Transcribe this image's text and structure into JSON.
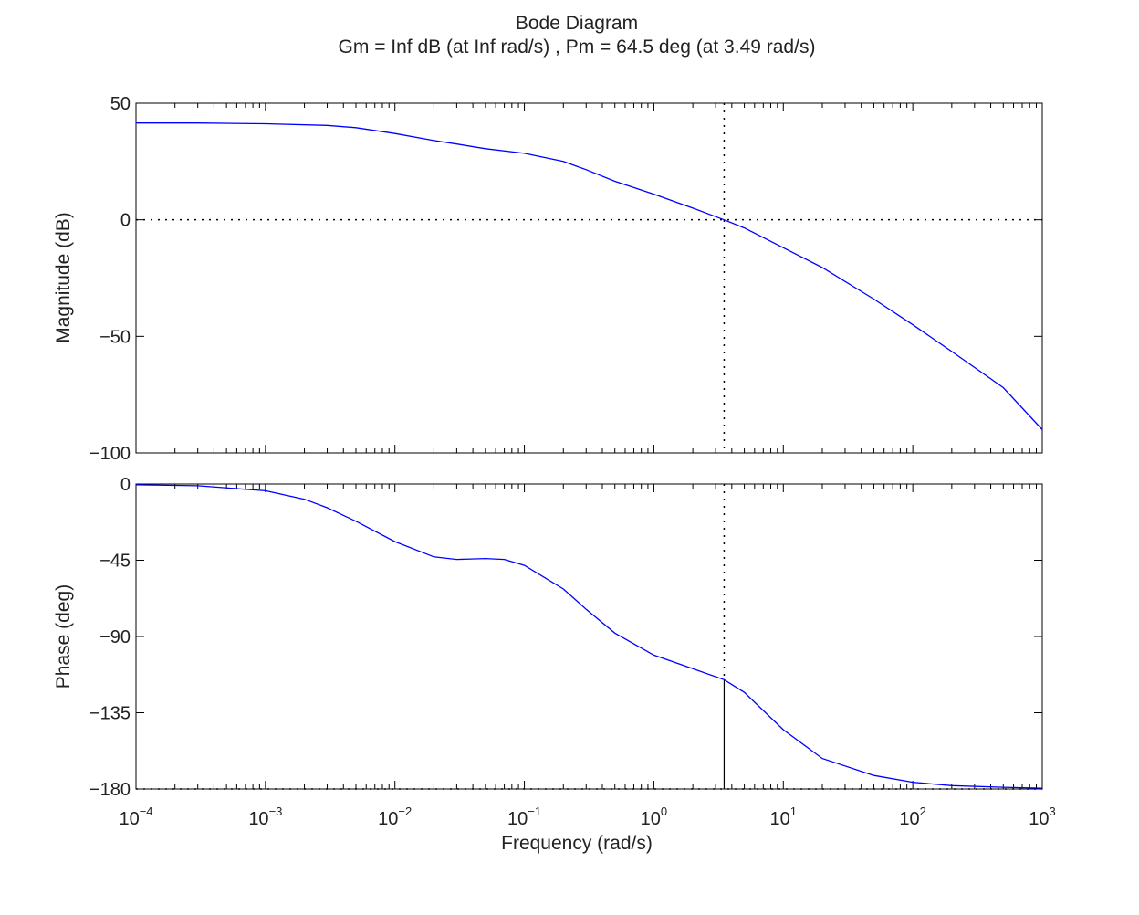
{
  "chart_data": {
    "type": "line",
    "title": "Bode Diagram",
    "subtitle": "Gm = Inf dB (at Inf rad/s) ,  Pm = 64.5 deg (at 3.49 rad/s)",
    "xlabel": "Frequency  (rad/s)",
    "x_scale": "log",
    "xlim": [
      0.0001,
      1000
    ],
    "x_ticks": [
      {
        "base": "10",
        "exp": "−4"
      },
      {
        "base": "10",
        "exp": "−3"
      },
      {
        "base": "10",
        "exp": "−2"
      },
      {
        "base": "10",
        "exp": "−1"
      },
      {
        "base": "10",
        "exp": "0"
      },
      {
        "base": "10",
        "exp": "1"
      },
      {
        "base": "10",
        "exp": "2"
      },
      {
        "base": "10",
        "exp": "3"
      }
    ],
    "crossover_frequency": 3.49,
    "magnitude": {
      "ylabel": "Magnitude (dB)",
      "ylim": [
        -100,
        50
      ],
      "y_ticks": [
        "50",
        "0",
        "−50",
        "−100"
      ],
      "x": [
        0.0001,
        0.0003,
        0.001,
        0.003,
        0.005,
        0.01,
        0.02,
        0.03,
        0.05,
        0.1,
        0.2,
        0.3,
        0.5,
        1,
        2,
        3.49,
        5,
        10,
        20,
        50,
        100,
        200,
        500,
        1000
      ],
      "values": [
        41.5,
        41.5,
        41.2,
        40.5,
        39.5,
        37,
        34,
        32.5,
        30.5,
        28.5,
        25,
        21.5,
        16.5,
        11,
        5,
        0,
        -3.5,
        -12,
        -20.5,
        -34,
        -45,
        -56.5,
        -72,
        -90
      ]
    },
    "phase": {
      "ylabel": "Phase (deg)",
      "ylim": [
        -180,
        0
      ],
      "y_ticks": [
        "0",
        "−45",
        "−90",
        "−135",
        "−180"
      ],
      "x": [
        0.0001,
        0.0003,
        0.001,
        0.002,
        0.003,
        0.005,
        0.01,
        0.02,
        0.03,
        0.05,
        0.07,
        0.1,
        0.2,
        0.3,
        0.5,
        1,
        2,
        3.49,
        5,
        10,
        20,
        50,
        100,
        200,
        500,
        1000
      ],
      "values": [
        -0.5,
        -1,
        -4,
        -9,
        -14,
        -22,
        -34,
        -43,
        -44.5,
        -44,
        -44.5,
        -48,
        -62,
        -74,
        -88,
        -101,
        -109,
        -115.5,
        -123,
        -145,
        -162,
        -172,
        -176,
        -178,
        -179,
        -179.5
      ]
    },
    "grid": false,
    "legend": "none"
  },
  "colors": {
    "curve": "#0000ff",
    "axes": "#000000",
    "background": "#ffffff"
  }
}
